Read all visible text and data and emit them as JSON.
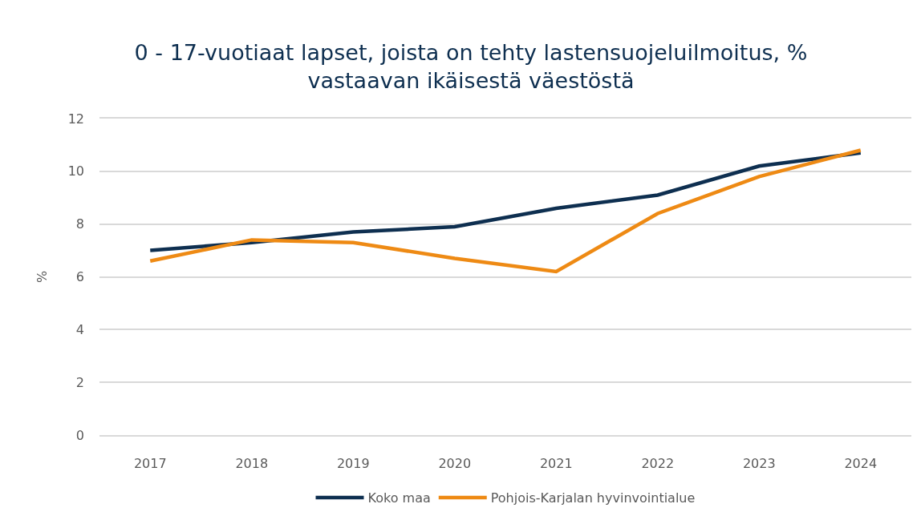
{
  "chart_data": {
    "type": "line",
    "title": "0 - 17-vuotiaat lapset, joista on tehty lastensuojeluilmoitus, %\nvastaavan ikäisestä väestöstä",
    "ylabel": "%",
    "categories": [
      "2017",
      "2018",
      "2019",
      "2020",
      "2021",
      "2022",
      "2023",
      "2024"
    ],
    "series": [
      {
        "name": "Koko maa",
        "color": "#0e2f50",
        "values": [
          7.0,
          7.3,
          7.7,
          7.9,
          8.6,
          9.1,
          10.2,
          10.7
        ]
      },
      {
        "name": "Pohjois-Karjalan hyvinvointialue",
        "color": "#ee8a14",
        "values": [
          6.6,
          7.4,
          7.3,
          6.7,
          6.2,
          8.4,
          9.8,
          10.8
        ]
      }
    ],
    "ylim": [
      0,
      12
    ],
    "yticks": [
      0,
      2,
      4,
      6,
      8,
      10,
      12
    ],
    "grid": "y",
    "legend": "bottom",
    "marker": "none",
    "line_style": "solid"
  }
}
